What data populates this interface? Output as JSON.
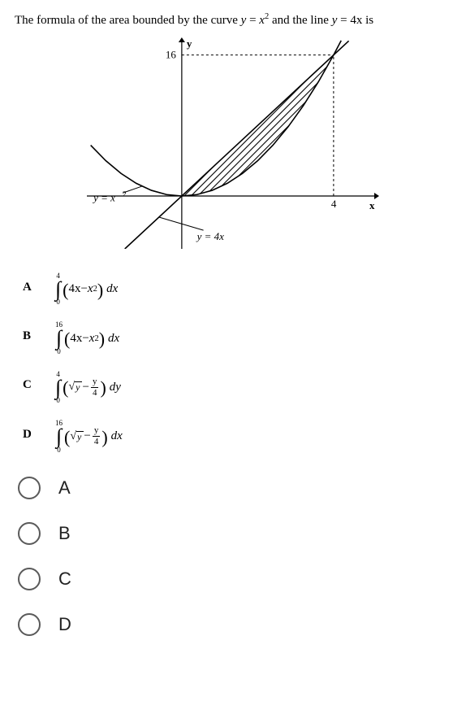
{
  "question": {
    "prefix": "The formula of the area bounded by the curve ",
    "curve_lhs": "y",
    "curve_eq": " = ",
    "curve_rhs_base": "x",
    "curve_rhs_exp": "2",
    "mid": " and the line ",
    "line_lhs": "y",
    "line_eq": " = ",
    "line_rhs": "4x",
    "suffix": " is"
  },
  "figure": {
    "y_axis_label": "y",
    "x_axis_label": "x",
    "y_tick_value": "16",
    "x_tick_value": "4",
    "curve_label": "y = x",
    "curve_label_exp": "2",
    "line_label": "y = 4x",
    "colors": {
      "axis": "#000000",
      "shade": "#000000",
      "dashed": "#000000",
      "bg": "#ffffff"
    },
    "plot": {
      "x_range": [
        -2.5,
        5.2
      ],
      "y_range": [
        -6,
        18
      ],
      "y_tick": 16,
      "x_tick": 4,
      "parabola_x_samples": [
        -2.4,
        -2.0,
        -1.6,
        -1.2,
        -0.8,
        -0.4,
        0,
        0.4,
        0.8,
        1.2,
        1.6,
        2.0,
        2.4,
        2.8,
        3.2,
        3.6,
        4.0,
        4.2
      ],
      "line_from": [
        -1.5,
        -6
      ],
      "line_to": [
        4.4,
        17.6
      ]
    }
  },
  "choices_defs": {
    "A": {
      "upper": "4",
      "lower": "0",
      "body_type": "poly",
      "diff": "dx"
    },
    "B": {
      "upper": "16",
      "lower": "0",
      "body_type": "poly",
      "diff": "dx"
    },
    "C": {
      "upper": "4",
      "lower": "0",
      "body_type": "root",
      "diff": "dy"
    },
    "D": {
      "upper": "16",
      "lower": "0",
      "body_type": "root",
      "diff": "dx"
    }
  },
  "choice_letters": {
    "A": "A",
    "B": "B",
    "C": "C",
    "D": "D"
  },
  "poly_parts": {
    "four_x": "4x",
    "minus": "−",
    "x": "x",
    "sq": "2"
  },
  "root_parts": {
    "y": "y",
    "minus": "−",
    "frac_num": "y",
    "frac_den": "4"
  },
  "answers": {
    "A": "A",
    "B": "B",
    "C": "C",
    "D": "D"
  }
}
